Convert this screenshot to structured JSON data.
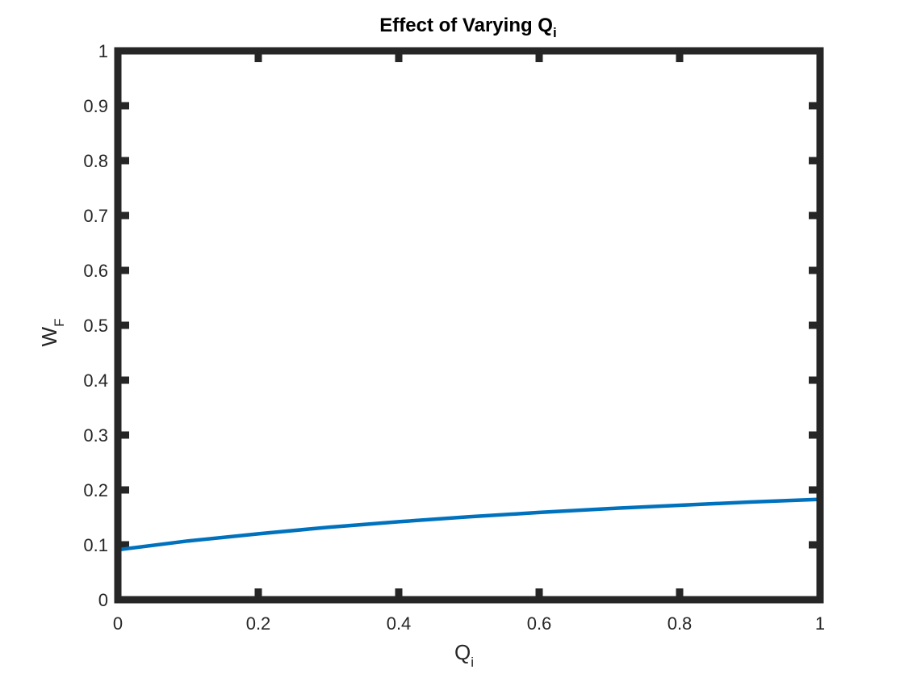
{
  "chart_data": {
    "type": "line",
    "title": {
      "base": "Effect of Varying Q",
      "subscript": "i"
    },
    "xlabel": {
      "base": "Q",
      "subscript": "i"
    },
    "ylabel": {
      "base": "W",
      "subscript": "F"
    },
    "xlim": [
      0,
      1
    ],
    "ylim": [
      0,
      1
    ],
    "xticks": [
      "0",
      "0.2",
      "0.4",
      "0.6",
      "0.8",
      "1"
    ],
    "yticks": [
      "0",
      "0.1",
      "0.2",
      "0.3",
      "0.4",
      "0.5",
      "0.6",
      "0.7",
      "0.8",
      "0.9",
      "1"
    ],
    "grid": false,
    "legend": "none",
    "series": [
      {
        "color": "#0072BD",
        "x": [
          0,
          0.1,
          0.2,
          0.3,
          0.4,
          0.5,
          0.6,
          0.7,
          0.8,
          0.9,
          1.0
        ],
        "y": [
          0.091,
          0.107,
          0.12,
          0.132,
          0.142,
          0.151,
          0.159,
          0.166,
          0.172,
          0.178,
          0.183
        ]
      }
    ]
  }
}
